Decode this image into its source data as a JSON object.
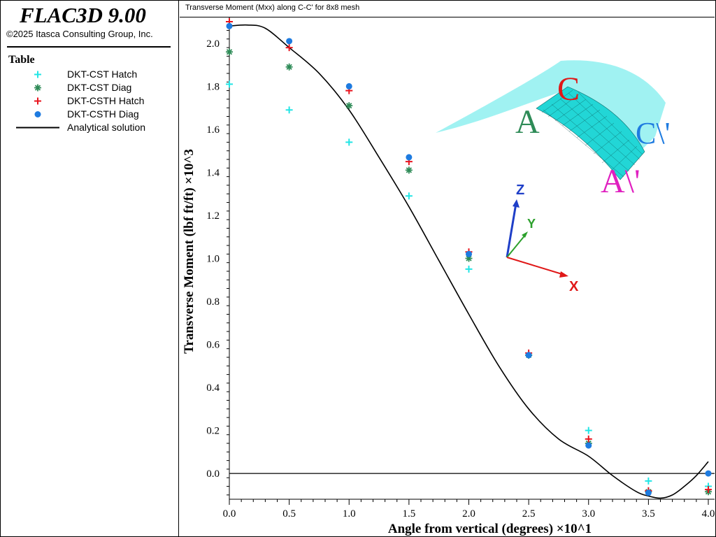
{
  "app": {
    "title": "FLAC3D 9.00",
    "copyright": "©2025 Itasca Consulting Group, Inc."
  },
  "legend": {
    "title": "Table",
    "items": [
      {
        "label": "DKT-CST Hatch",
        "marker": "plus",
        "color": "#22e5e5"
      },
      {
        "label": "DKT-CST Diag",
        "marker": "asterisk",
        "color": "#2e8b57"
      },
      {
        "label": "DKT-CSTH Hatch",
        "marker": "plus",
        "color": "#e8141e"
      },
      {
        "label": "DKT-CSTH Diag",
        "marker": "dot",
        "color": "#1e7be0"
      },
      {
        "label": "Analytical solution",
        "marker": "line",
        "color": "#000000"
      }
    ]
  },
  "inset": {
    "labels": {
      "A": "A",
      "C": "C",
      "C_prime": "C\\'",
      "A_prime": "A\\'"
    },
    "axes": {
      "z": "Z",
      "y": "Y",
      "x": "X"
    }
  },
  "chart_data": {
    "type": "scatter",
    "title": "Transverse Moment (Mxx) along C-C' for 8x8 mesh",
    "xlabel": "Angle from vertical (degrees) ×10^1",
    "ylabel": "Transverse Moment (lbf ft/ft) ×10^3",
    "xlim": [
      0,
      4.0
    ],
    "ylim": [
      -0.12,
      2.12
    ],
    "xticks": [
      0.0,
      0.5,
      1.0,
      1.5,
      2.0,
      2.5,
      3.0,
      3.5,
      4.0
    ],
    "yticks": [
      0.0,
      0.2,
      0.4,
      0.6,
      0.8,
      1.0,
      1.2,
      1.4,
      1.6,
      1.8,
      2.0
    ],
    "x": [
      0.0,
      0.5,
      1.0,
      1.5,
      2.0,
      2.5,
      3.0,
      3.5,
      4.0
    ],
    "series": [
      {
        "name": "DKT-CST Hatch",
        "marker": "plus",
        "color": "#22e5e5",
        "values": [
          1.81,
          1.69,
          1.54,
          1.29,
          0.95,
          0.55,
          0.2,
          -0.035,
          -0.06
        ]
      },
      {
        "name": "DKT-CST Diag",
        "marker": "asterisk",
        "color": "#2e8b57",
        "values": [
          1.96,
          1.89,
          1.71,
          1.41,
          1.0,
          0.55,
          0.14,
          -0.085,
          -0.085
        ]
      },
      {
        "name": "DKT-CSTH Hatch",
        "marker": "plus",
        "color": "#e8141e",
        "values": [
          2.12,
          1.98,
          1.78,
          1.45,
          1.03,
          0.56,
          0.16,
          -0.08,
          -0.075
        ]
      },
      {
        "name": "DKT-CSTH Diag",
        "marker": "dot",
        "color": "#1e7be0",
        "values": [
          2.08,
          2.01,
          1.8,
          1.47,
          1.02,
          0.55,
          0.13,
          -0.09,
          0.0
        ]
      }
    ],
    "analytical": {
      "name": "Analytical solution",
      "color": "#000000",
      "x": [
        0.0,
        0.15,
        0.3,
        0.5,
        0.75,
        1.0,
        1.25,
        1.5,
        1.75,
        2.0,
        2.25,
        2.5,
        2.75,
        3.0,
        3.2,
        3.4,
        3.5,
        3.6,
        3.7,
        3.8,
        3.9,
        4.0
      ],
      "y": [
        2.08,
        2.085,
        2.07,
        1.98,
        1.86,
        1.69,
        1.47,
        1.24,
        0.99,
        0.74,
        0.5,
        0.3,
        0.16,
        0.08,
        -0.01,
        -0.085,
        -0.105,
        -0.115,
        -0.1,
        -0.06,
        -0.01,
        0.055
      ]
    }
  }
}
